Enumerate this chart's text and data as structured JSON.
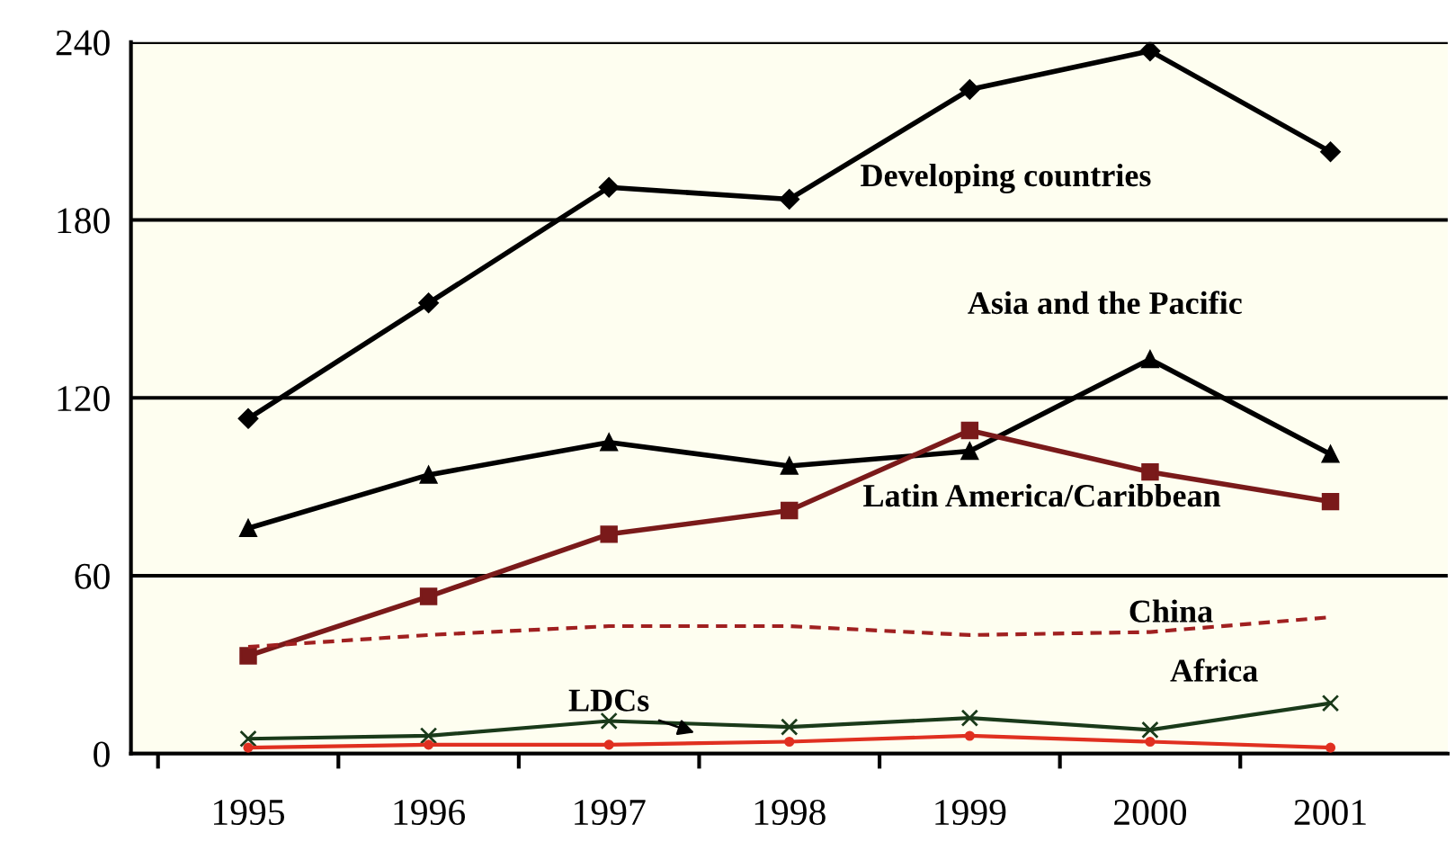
{
  "chart_data": {
    "type": "line",
    "categories": [
      "1995",
      "1996",
      "1997",
      "1998",
      "1999",
      "2000",
      "2001"
    ],
    "ylim": [
      0,
      240
    ],
    "yticks": [
      0,
      60,
      120,
      180,
      240
    ],
    "grid": "y",
    "series": [
      {
        "name": "Developing countries",
        "color": "#000000",
        "marker": "diamond",
        "line_style": "solid",
        "values": [
          113,
          152,
          191,
          187,
          224,
          237,
          203
        ]
      },
      {
        "name": "Asia and the Pacific",
        "color": "#000000",
        "marker": "triangle",
        "line_style": "solid",
        "values": [
          76,
          94,
          105,
          97,
          102,
          133,
          101
        ]
      },
      {
        "name": "Latin America/Caribbean",
        "color": "#7a1a1a",
        "marker": "square",
        "line_style": "solid",
        "values": [
          33,
          53,
          74,
          82,
          109,
          95,
          85
        ]
      },
      {
        "name": "China",
        "color": "#a02020",
        "marker": "none",
        "line_style": "dashed",
        "values": [
          36,
          40,
          43,
          43,
          40,
          41,
          46
        ]
      },
      {
        "name": "Africa",
        "color": "#1a3a1a",
        "marker": "cross",
        "line_style": "solid",
        "values": [
          5,
          6,
          11,
          9,
          12,
          8,
          17
        ]
      },
      {
        "name": "LDCs",
        "color": "#e03020",
        "marker": "circle",
        "line_style": "solid",
        "values": [
          2,
          3,
          3,
          4,
          6,
          4,
          2
        ]
      }
    ]
  }
}
